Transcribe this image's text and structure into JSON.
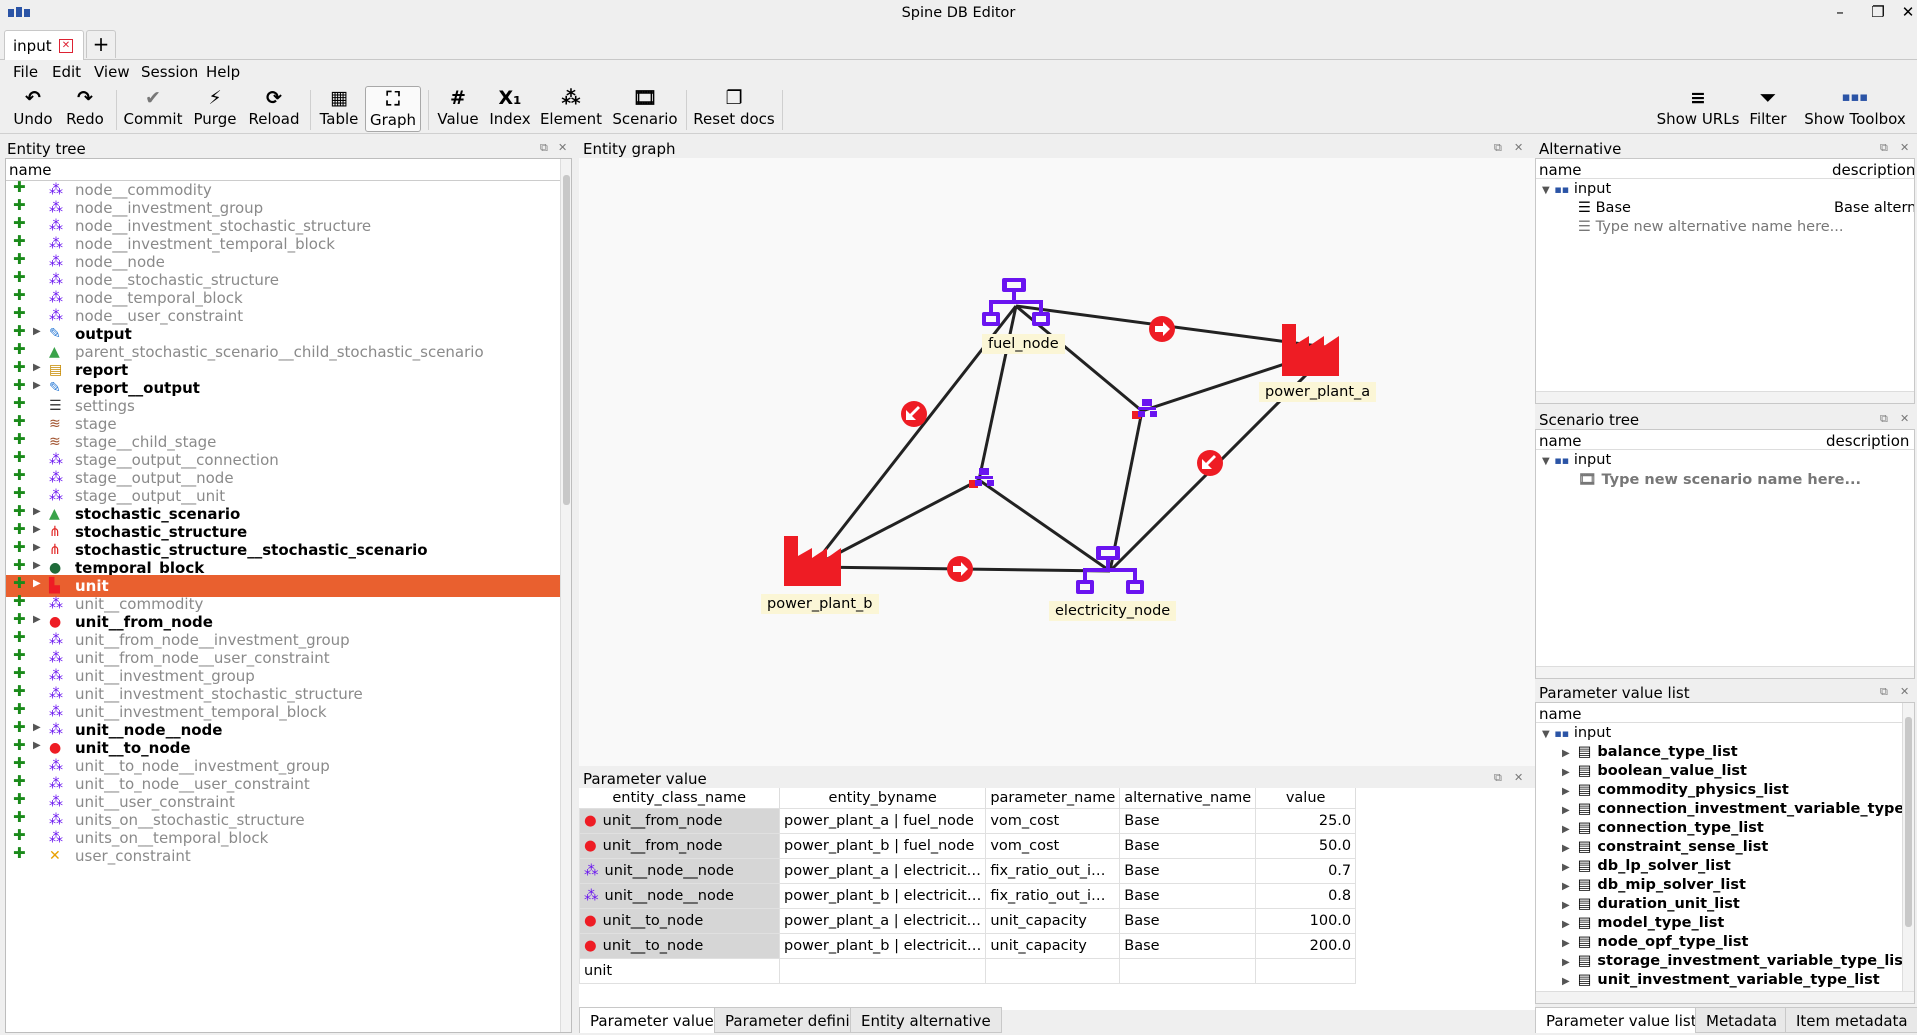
{
  "window": {
    "title": "Spine DB Editor"
  },
  "tabs": {
    "active_label": "input",
    "new_tab": "+"
  },
  "menu": {
    "file": "File",
    "edit": "Edit",
    "view": "View",
    "session": "Session",
    "help": "Help"
  },
  "toolbar": {
    "undo": "Undo",
    "redo": "Redo",
    "commit": "Commit",
    "purge": "Purge",
    "reload": "Reload",
    "table": "Table",
    "graph": "Graph",
    "value": "Value",
    "index": "Index",
    "element": "Element",
    "scenario": "Scenario",
    "reset_docs": "Reset docs",
    "show_urls": "Show URLs",
    "filter": "Filter",
    "show_toolbox": "Show Toolbox"
  },
  "entity_tree": {
    "title": "Entity tree",
    "column": "name",
    "items": [
      {
        "label": "node__commodity",
        "bold": false,
        "expandable": false,
        "icon": "node-commodity-icon"
      },
      {
        "label": "node__investment_group",
        "bold": false,
        "expandable": false,
        "icon": "node-investment-group-icon"
      },
      {
        "label": "node__investment_stochastic_structure",
        "bold": false,
        "expandable": false,
        "icon": "node-stochastic-icon"
      },
      {
        "label": "node__investment_temporal_block",
        "bold": false,
        "expandable": false,
        "icon": "node-temporal-icon"
      },
      {
        "label": "node__node",
        "bold": false,
        "expandable": false,
        "icon": "node-node-icon"
      },
      {
        "label": "node__stochastic_structure",
        "bold": false,
        "expandable": false,
        "icon": "node-stochastic-icon"
      },
      {
        "label": "node__temporal_block",
        "bold": false,
        "expandable": false,
        "icon": "node-temporal-icon"
      },
      {
        "label": "node__user_constraint",
        "bold": false,
        "expandable": false,
        "icon": "node-constraint-icon"
      },
      {
        "label": "output",
        "bold": true,
        "expandable": true,
        "icon": "output-icon"
      },
      {
        "label": "parent_stochastic_scenario__child_stochastic_scenario",
        "bold": false,
        "expandable": false,
        "icon": "scenario-chart-icon"
      },
      {
        "label": "report",
        "bold": true,
        "expandable": true,
        "icon": "report-icon"
      },
      {
        "label": "report__output",
        "bold": true,
        "expandable": true,
        "icon": "report-output-icon"
      },
      {
        "label": "settings",
        "bold": false,
        "expandable": false,
        "icon": "settings-icon"
      },
      {
        "label": "stage",
        "bold": false,
        "expandable": false,
        "icon": "stage-icon"
      },
      {
        "label": "stage__child_stage",
        "bold": false,
        "expandable": false,
        "icon": "stage-icon"
      },
      {
        "label": "stage__output__connection",
        "bold": false,
        "expandable": false,
        "icon": "stage-connection-icon"
      },
      {
        "label": "stage__output__node",
        "bold": false,
        "expandable": false,
        "icon": "stage-node-icon"
      },
      {
        "label": "stage__output__unit",
        "bold": false,
        "expandable": false,
        "icon": "stage-unit-icon"
      },
      {
        "label": "stochastic_scenario",
        "bold": true,
        "expandable": true,
        "icon": "scenario-chart-icon"
      },
      {
        "label": "stochastic_structure",
        "bold": true,
        "expandable": true,
        "icon": "structure-icon"
      },
      {
        "label": "stochastic_structure__stochastic_scenario",
        "bold": true,
        "expandable": true,
        "icon": "structure-icon"
      },
      {
        "label": "temporal_block",
        "bold": true,
        "expandable": true,
        "icon": "clock-icon"
      },
      {
        "label": "unit",
        "bold": true,
        "expandable": true,
        "icon": "factory-icon",
        "selected": true
      },
      {
        "label": "unit__commodity",
        "bold": false,
        "expandable": false,
        "icon": "unit-commodity-icon"
      },
      {
        "label": "unit__from_node",
        "bold": true,
        "expandable": true,
        "icon": "from-node-icon"
      },
      {
        "label": "unit__from_node__investment_group",
        "bold": false,
        "expandable": false,
        "icon": "unit-node-icon"
      },
      {
        "label": "unit__from_node__user_constraint",
        "bold": false,
        "expandable": false,
        "icon": "unit-node-icon"
      },
      {
        "label": "unit__investment_group",
        "bold": false,
        "expandable": false,
        "icon": "unit-investment-icon"
      },
      {
        "label": "unit__investment_stochastic_structure",
        "bold": false,
        "expandable": false,
        "icon": "unit-stochastic-icon"
      },
      {
        "label": "unit__investment_temporal_block",
        "bold": false,
        "expandable": false,
        "icon": "unit-temporal-icon"
      },
      {
        "label": "unit__node__node",
        "bold": true,
        "expandable": true,
        "icon": "unit-node-icon"
      },
      {
        "label": "unit__to_node",
        "bold": true,
        "expandable": true,
        "icon": "to-node-icon"
      },
      {
        "label": "unit__to_node__investment_group",
        "bold": false,
        "expandable": false,
        "icon": "unit-node-icon"
      },
      {
        "label": "unit__to_node__user_constraint",
        "bold": false,
        "expandable": false,
        "icon": "unit-node-icon"
      },
      {
        "label": "unit__user_constraint",
        "bold": false,
        "expandable": false,
        "icon": "unit-constraint-icon"
      },
      {
        "label": "units_on__stochastic_structure",
        "bold": false,
        "expandable": false,
        "icon": "unit-stochastic-icon"
      },
      {
        "label": "units_on__temporal_block",
        "bold": false,
        "expandable": false,
        "icon": "unit-temporal-icon"
      },
      {
        "label": "user_constraint",
        "bold": false,
        "expandable": false,
        "icon": "constraint-icon"
      }
    ]
  },
  "graph": {
    "title": "Entity graph",
    "labels": {
      "fuel_node": "fuel_node",
      "power_plant_a": "power_plant_a",
      "power_plant_b": "power_plant_b",
      "electricity_node": "electricity_node"
    }
  },
  "parameter_value": {
    "title": "Parameter value",
    "columns": [
      "entity_class_name",
      "entity_byname",
      "parameter_name",
      "alternative_name",
      "value"
    ],
    "rows": [
      {
        "cls": "unit__from_node",
        "icon": "from-node-icon",
        "byname": "power_plant_a | fuel_node",
        "param": "vom_cost",
        "alt": "Base",
        "value": "25.0"
      },
      {
        "cls": "unit__from_node",
        "icon": "from-node-icon",
        "byname": "power_plant_b | fuel_node",
        "param": "vom_cost",
        "alt": "Base",
        "value": "50.0"
      },
      {
        "cls": "unit__node__node",
        "icon": "unit-node-icon",
        "byname": "power_plant_a | electricit…",
        "param": "fix_ratio_out_i…",
        "alt": "Base",
        "value": "0.7"
      },
      {
        "cls": "unit__node__node",
        "icon": "unit-node-icon",
        "byname": "power_plant_b | electricit…",
        "param": "fix_ratio_out_i…",
        "alt": "Base",
        "value": "0.8"
      },
      {
        "cls": "unit__to_node",
        "icon": "to-node-icon",
        "byname": "power_plant_a | electricit…",
        "param": "unit_capacity",
        "alt": "Base",
        "value": "100.0"
      },
      {
        "cls": "unit__to_node",
        "icon": "to-node-icon",
        "byname": "power_plant_b | electricit…",
        "param": "unit_capacity",
        "alt": "Base",
        "value": "200.0"
      }
    ],
    "new_row_class": "unit"
  },
  "bottom_tabs_center": [
    "Parameter value",
    "Parameter definition",
    "Entity alternative"
  ],
  "alternative": {
    "title": "Alternative",
    "col_name": "name",
    "col_desc": "description",
    "db": "input",
    "item": "Base",
    "item_desc": "Base altern",
    "placeholder": "Type new alternative name here..."
  },
  "scenario_tree": {
    "title": "Scenario tree",
    "col_name": "name",
    "col_desc": "description",
    "db": "input",
    "placeholder": "Type new scenario name here..."
  },
  "parameter_value_list": {
    "title": "Parameter value list",
    "col_name": "name",
    "db": "input",
    "items": [
      "balance_type_list",
      "boolean_value_list",
      "commodity_physics_list",
      "connection_investment_variable_type_list",
      "connection_type_list",
      "constraint_sense_list",
      "db_lp_solver_list",
      "db_mip_solver_list",
      "duration_unit_list",
      "model_type_list",
      "node_opf_type_list",
      "storage_investment_variable_type_list",
      "unit_investment_variable_type_list"
    ]
  },
  "bottom_tabs_right": [
    "Parameter value list",
    "Metadata",
    "Item metadata"
  ],
  "colors": {
    "selection": "#e9602f",
    "node": "#6a14f0",
    "unit": "#ee1c24",
    "add": "#1a8a1a"
  }
}
